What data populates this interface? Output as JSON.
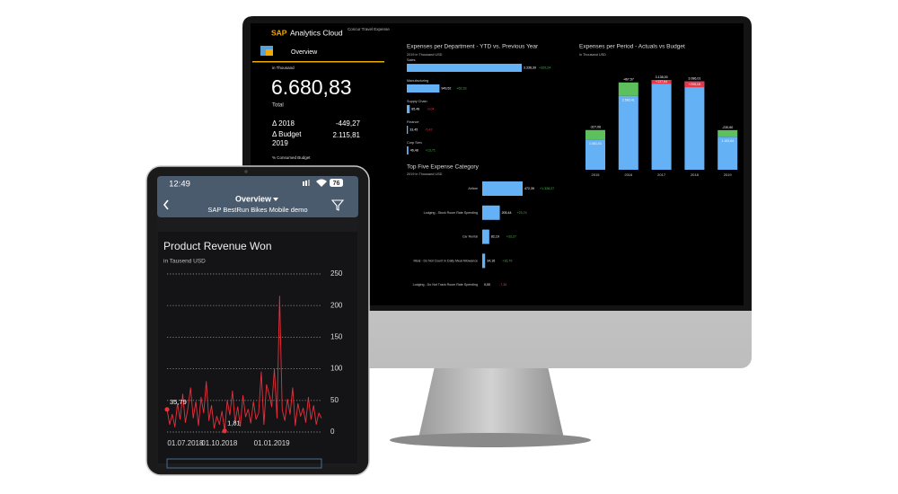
{
  "monitor": {
    "header": {
      "brand": "SAP",
      "product": "Analytics Cloud",
      "story": "Concur Travel Expense"
    },
    "nav": {
      "page": "Overview"
    },
    "kpi": {
      "unit": "in Thousand",
      "value": "6.680,83",
      "label": "Total",
      "rows": [
        {
          "label": [
            "Δ 2018"
          ],
          "value": "-449,27"
        },
        {
          "label": [
            "Δ Budget",
            "2019"
          ],
          "value": "2.115,81"
        }
      ],
      "footer": "% Consumed Budget"
    },
    "dept_chart": {
      "type": "bar",
      "title": "Expenses per Department - YTD vs. Previous Year",
      "subtitle": "2019 in Thousand USD",
      "categories": [
        "Sales",
        "Manufacturing",
        "Supply Chain",
        "Finance",
        "Corp Serv"
      ],
      "values": [
        3336.39,
        949.52,
        85.48,
        33.45,
        46.48
      ],
      "value_labels": [
        "3.336,39",
        "949,52",
        "85,48",
        "33,45",
        "46,48"
      ],
      "deltas": [
        320.24,
        62.33,
        -9.04,
        -5.42,
        13.71
      ],
      "delta_labels": [
        "+320,24",
        "+62,33",
        "-9,04",
        "-5,42",
        "+13,71"
      ],
      "color": "#64b1f5",
      "positive_color": "#4cbb4c",
      "negative_color": "#e5394a"
    },
    "category_chart": {
      "type": "bar",
      "title": "Top Five Expense Category",
      "subtitle": "2019 in Thousand USD",
      "categories": [
        "Airfare",
        "Lodging - Stock Room Rate Spending",
        "Car Rental",
        "Meal - Do Not Count in Daily Meal Allowance",
        "Lodging - Do Not Track Room Rate Spending"
      ],
      "values": [
        472.39,
        205.44,
        82.19,
        34.16,
        0
      ],
      "value_labels": [
        "472,39",
        "205,44",
        "82,19",
        "34,16",
        "0,00"
      ],
      "deltas": [
        1328.27,
        23.74,
        33.27,
        16.79,
        -7.38
      ],
      "delta_labels": [
        "+1.328,27",
        "+23,74",
        "+33,27",
        "+16,79",
        "-7,38"
      ],
      "color": "#64b1f5",
      "positive_color": "#4cbb4c",
      "negative_color": "#e5394a"
    },
    "period_chart": {
      "type": "stacked-bar",
      "title": "Expenses per Period - Actuals vs Budget",
      "subtitle": "in Thousand USD",
      "categories": [
        "2015",
        "2016",
        "2017",
        "2018",
        "2019"
      ],
      "values": [
        1061.01,
        2583.41,
        3138.0,
        3086.01,
        1153.64
      ],
      "value_labels": [
        "1.061,01",
        "2.583,41",
        "3.138,00",
        "3.086,01",
        "1.153,64"
      ],
      "deltas": [
        -327.06,
        -467.57,
        137.64,
        205.18,
        -230.6
      ],
      "delta_labels": [
        "-327,06",
        "-467,57",
        "+137,64",
        "+205,18",
        "-230,60"
      ],
      "color": "#64b1f5",
      "under_budget_color": "#5cc05c",
      "over_budget_color": "#e5394a"
    }
  },
  "tablet": {
    "status": {
      "time": "12:49",
      "battery": "76"
    },
    "header": {
      "title": "Overview",
      "subtitle": "SAP BestRun Bikes Mobile demo"
    },
    "revenue_chart": {
      "type": "line",
      "title": "Product Revenue Won",
      "subtitle": "in Tausend USD",
      "categories": [
        null,
        null,
        null,
        null,
        null,
        null,
        null,
        "01.07.2018",
        null,
        null,
        null,
        null,
        null,
        null,
        null,
        null,
        null,
        null,
        null,
        null,
        "01.10.2018",
        null,
        null,
        null,
        null,
        null,
        null,
        null,
        null,
        null,
        null,
        null,
        null,
        null,
        null,
        null,
        null,
        null,
        null,
        null,
        "01.01.2019",
        null,
        null,
        null,
        null,
        null,
        null,
        null,
        null,
        null,
        null,
        null,
        null,
        null,
        null,
        null,
        null,
        null,
        null,
        null
      ],
      "values": [
        35.79,
        12,
        28,
        8,
        45,
        20,
        60,
        15,
        38,
        70,
        22,
        48,
        10,
        55,
        30,
        80,
        18,
        42,
        6,
        25,
        12,
        33,
        1.81,
        50,
        27,
        65,
        15,
        40,
        9,
        58,
        24,
        36,
        14,
        48,
        20,
        30,
        95,
        12,
        75,
        60,
        40,
        100,
        22,
        215,
        35,
        18,
        52,
        28,
        70,
        10,
        45,
        25,
        38,
        15,
        55,
        20,
        42,
        12,
        30,
        22
      ],
      "value_labels": [
        "35,79",
        null,
        null,
        null,
        null,
        null,
        null,
        null,
        null,
        null,
        null,
        null,
        null,
        null,
        null,
        null,
        null,
        null,
        null,
        null,
        null,
        null,
        "1,81",
        null,
        null,
        null,
        null,
        null,
        null,
        null,
        null,
        null,
        null,
        null,
        null,
        null,
        null,
        null,
        null,
        null,
        null,
        null,
        null,
        null,
        null,
        null,
        null,
        null,
        null,
        null,
        null,
        null,
        null,
        null,
        null,
        null,
        null,
        null,
        null,
        null
      ],
      "ylim": [
        0,
        250
      ],
      "yticks": [
        0,
        50,
        100,
        150,
        200,
        250
      ],
      "grid": true,
      "color": "#e8303c"
    }
  }
}
